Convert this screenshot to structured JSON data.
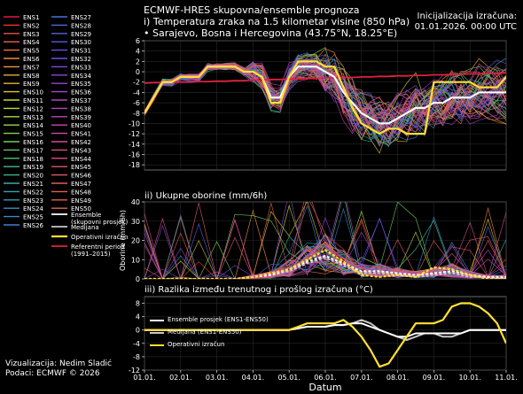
{
  "header": {
    "title_line1": "ECMWF-HRES skupovna/ensemble prognoza",
    "title_line2": "i) Temperatura zraka na 1.5 kilometar visine (850 hPa)",
    "title_line3": "• Sarajevo, Bosna i Hercegovina (43.75°N, 18.25°E)",
    "init_label": "Inicijalizacija izračuna:",
    "init_value": "01.01.2026. 00:00 UTC"
  },
  "footer": {
    "credit_line1": "Vizualizacija: Nedim Sladić",
    "credit_line2": "Podaci: ECMWF © 2026"
  },
  "colors": {
    "background": "#000000",
    "ensemble_mean": "#ffffff",
    "median": "#c8c8c8",
    "operational": "#ffe033",
    "reference": "#e0213d",
    "grid": "#2a2a2a"
  },
  "legend": {
    "members": [
      "ENS1",
      "ENS2",
      "ENS3",
      "ENS4",
      "ENS5",
      "ENS6",
      "ENS7",
      "ENS8",
      "ENS9",
      "ENS10",
      "ENS11",
      "ENS12",
      "ENS13",
      "ENS14",
      "ENS15",
      "ENS16",
      "ENS17",
      "ENS18",
      "ENS19",
      "ENS20",
      "ENS21",
      "ENS22",
      "ENS23",
      "ENS24",
      "ENS25",
      "ENS26",
      "ENS27",
      "ENS28",
      "ENS29",
      "ENS30",
      "ENS31",
      "ENS32",
      "ENS33",
      "ENS34",
      "ENS35",
      "ENS36",
      "ENS37",
      "ENS38",
      "ENS39",
      "ENS40",
      "ENS41",
      "ENS42",
      "ENS43",
      "ENS44",
      "ENS45",
      "ENS46",
      "ENS47",
      "ENS48",
      "ENS49",
      "ENS50"
    ],
    "member_colors": [
      "#e6194b",
      "#ef3b2c",
      "#f0524d",
      "#f2624a",
      "#f2733d",
      "#f3843a",
      "#f39538",
      "#f0a636",
      "#e8b636",
      "#ddc739",
      "#cfd23c",
      "#bfd940",
      "#acd946",
      "#98d64d",
      "#83d257",
      "#6fce62",
      "#5dc96f",
      "#4fc37c",
      "#43bd8a",
      "#3ab697",
      "#34aea4",
      "#30a6b0",
      "#2e9dbb",
      "#2f93c5",
      "#338acd",
      "#3a80d4",
      "#4276da",
      "#4c6cdf",
      "#5662e2",
      "#6158e4",
      "#6c4fe4",
      "#774be3",
      "#8248e0",
      "#8d46dc",
      "#9845d6",
      "#a345cf",
      "#ad45c7",
      "#b746be",
      "#c047b4",
      "#c849a9",
      "#cf4b9e",
      "#d54d93",
      "#da5088",
      "#de527c",
      "#e15572",
      "#e35867",
      "#e45b5e",
      "#e55e56",
      "#e5614f",
      "#e56449"
    ],
    "special": [
      {
        "label1": "Ensemble",
        "label2": "(skupovni prosjek)"
      },
      {
        "label1": "Medijana",
        "label2": ""
      },
      {
        "label1": "Operativni izračun",
        "label2": ""
      },
      {
        "label1": "Referentni period",
        "label2": "(1991–2015)"
      }
    ]
  },
  "chart_data": [
    {
      "type": "line",
      "title": "i) Temperatura zraka na 1.5 kilometar visine (850 hPa)",
      "ylabel": "",
      "ylim": [
        -19,
        6
      ],
      "yticks": [
        6,
        4,
        2,
        0,
        -2,
        -4,
        -6,
        -8,
        -10,
        -12,
        -14,
        -16,
        -18
      ],
      "x_days": [
        0,
        0.25,
        0.5,
        0.75,
        1,
        1.25,
        1.5,
        1.75,
        2,
        2.25,
        2.5,
        2.75,
        3,
        3.25,
        3.5,
        3.75,
        4,
        4.25,
        4.5,
        4.75,
        5,
        5.25,
        5.5,
        5.75,
        6,
        6.25,
        6.5,
        6.75,
        7,
        7.25,
        7.5,
        7.75,
        8,
        8.25,
        8.5,
        8.75,
        9,
        9.25,
        9.5,
        9.75,
        10
      ],
      "operational": [
        -8,
        -5,
        -2,
        -2,
        -1,
        -1,
        -1,
        1,
        1,
        1,
        1,
        0,
        0,
        -1,
        -6,
        -6,
        -1,
        2,
        2,
        2,
        1,
        1,
        -3,
        -7,
        -10,
        -11,
        -12,
        -11,
        -11,
        -12,
        -12,
        -12,
        -2,
        -2,
        -2,
        -2,
        -2,
        -3,
        -3,
        -3,
        -1
      ],
      "ensemble_mean": [
        -8,
        -5,
        -2,
        -2,
        -1,
        -1,
        -1,
        1,
        1,
        1,
        1,
        0,
        0,
        -1,
        -5,
        -5,
        -1,
        1,
        1,
        1,
        0,
        -1,
        -4,
        -6,
        -8,
        -9,
        -10,
        -10,
        -9,
        -8,
        -7,
        -7,
        -6,
        -6,
        -5,
        -5,
        -5,
        -4,
        -4,
        -4,
        -4
      ],
      "median": [
        -8,
        -5,
        -2,
        -2,
        -1,
        -1,
        -1,
        1,
        1,
        1,
        1,
        0,
        0,
        -1,
        -5,
        -5,
        -1,
        1,
        1,
        1,
        0,
        -1,
        -4,
        -6,
        -8,
        -9,
        -10,
        -10,
        -9,
        -8,
        -7,
        -7,
        -6,
        -6,
        -5,
        -5,
        -5,
        -4,
        -4,
        -4,
        -4
      ],
      "reference": [
        -2.2,
        -2.1,
        -2.1,
        -2,
        -2,
        -2,
        -1.9,
        -1.9,
        -1.8,
        -1.8,
        -1.7,
        -1.7,
        -1.6,
        -1.6,
        -1.5,
        -1.5,
        -1.4,
        -1.4,
        -1.3,
        -1.3,
        -1.2,
        -1.2,
        -1.1,
        -1.1,
        -1,
        -1,
        -0.9,
        -0.9,
        -0.8,
        -0.8,
        -0.7,
        -0.7,
        -0.6,
        -0.6,
        -0.5,
        -0.5,
        -0.4,
        -0.4,
        -0.3,
        -0.3,
        -0.2
      ]
    },
    {
      "type": "line",
      "title": "ii) Ukupne oborine (mm/6h)",
      "ylabel": "Oborine (mm/6h)",
      "ylim": [
        0,
        40
      ],
      "yticks": [
        40,
        30,
        20,
        10,
        0
      ],
      "x_days": [
        0,
        0.5,
        1,
        1.5,
        2,
        2.5,
        3,
        3.5,
        4,
        4.5,
        5,
        5.5,
        6,
        6.5,
        7,
        7.5,
        8,
        8.5,
        9,
        9.5,
        10
      ],
      "ensemble_mean": [
        0,
        0,
        0,
        0,
        0,
        0,
        1,
        2,
        5,
        9,
        12,
        8,
        4,
        4,
        3,
        2,
        3,
        4,
        2,
        1,
        1
      ],
      "median": [
        0,
        0,
        0,
        0,
        0,
        0,
        1,
        2,
        4,
        8,
        11,
        7,
        3,
        3,
        2,
        1,
        2,
        3,
        1,
        1,
        0
      ],
      "operational": [
        0,
        0,
        0,
        0,
        0,
        0,
        1,
        3,
        5,
        10,
        15,
        9,
        2,
        1,
        2,
        1,
        6,
        5,
        2,
        0,
        0
      ]
    },
    {
      "type": "line",
      "title": "iii) Razlika između trenutnog i prošlog izračuna (°C)",
      "ylabel": "",
      "ylim": [
        -12,
        10
      ],
      "yticks": [
        8,
        4,
        0,
        -4,
        -8,
        -12
      ],
      "x_days": [
        0,
        0.25,
        0.5,
        0.75,
        1,
        1.25,
        1.5,
        1.75,
        2,
        2.25,
        2.5,
        2.75,
        3,
        3.25,
        3.5,
        3.75,
        4,
        4.25,
        4.5,
        4.75,
        5,
        5.25,
        5.5,
        5.75,
        6,
        6.25,
        6.5,
        6.75,
        7,
        7.25,
        7.5,
        7.75,
        8,
        8.25,
        8.5,
        8.75,
        9,
        9.25,
        9.5,
        9.75,
        10
      ],
      "ensemble_mean": [
        0,
        0,
        0,
        0,
        0,
        0,
        0,
        0,
        0,
        0,
        0,
        0,
        0,
        0,
        0,
        0,
        0,
        0.5,
        1,
        1,
        1,
        1.5,
        1.5,
        2,
        2,
        1,
        0,
        -1,
        -2,
        -2,
        -1,
        -1,
        -1,
        -1,
        -1,
        -1,
        0,
        0,
        0,
        0,
        0
      ],
      "median": [
        0,
        0,
        0,
        0,
        0,
        0,
        0,
        0,
        0,
        0,
        0,
        0,
        0,
        0,
        0,
        0,
        0,
        0.5,
        1,
        1,
        1,
        1.5,
        1.5,
        2,
        3,
        2,
        0,
        -1,
        -2,
        -3,
        -2,
        -1,
        -1,
        -2,
        -2,
        -1,
        0,
        0,
        0,
        0,
        0
      ],
      "operational": [
        0,
        0,
        0,
        0,
        0,
        0,
        0,
        0,
        0,
        0,
        0,
        0,
        0,
        0,
        0,
        0,
        0,
        1,
        2,
        2,
        2,
        2,
        3,
        1,
        -2,
        -6,
        -11,
        -10,
        -6,
        -2,
        2,
        2,
        2,
        3,
        7,
        8,
        8,
        7,
        5,
        2,
        -4
      ],
      "legend": [
        "Ensemble prosjek (ENS1-ENS50)",
        "Medijana (ENS1-ENS50)",
        "Operativni izračun"
      ]
    }
  ],
  "xaxis": {
    "labels": [
      "01.01.",
      "02.01.",
      "03.01.",
      "04.01.",
      "05.01.",
      "06.01.",
      "07.01.",
      "08.01.",
      "09.01.",
      "10.01.",
      "11.01."
    ],
    "title": "Datum"
  }
}
